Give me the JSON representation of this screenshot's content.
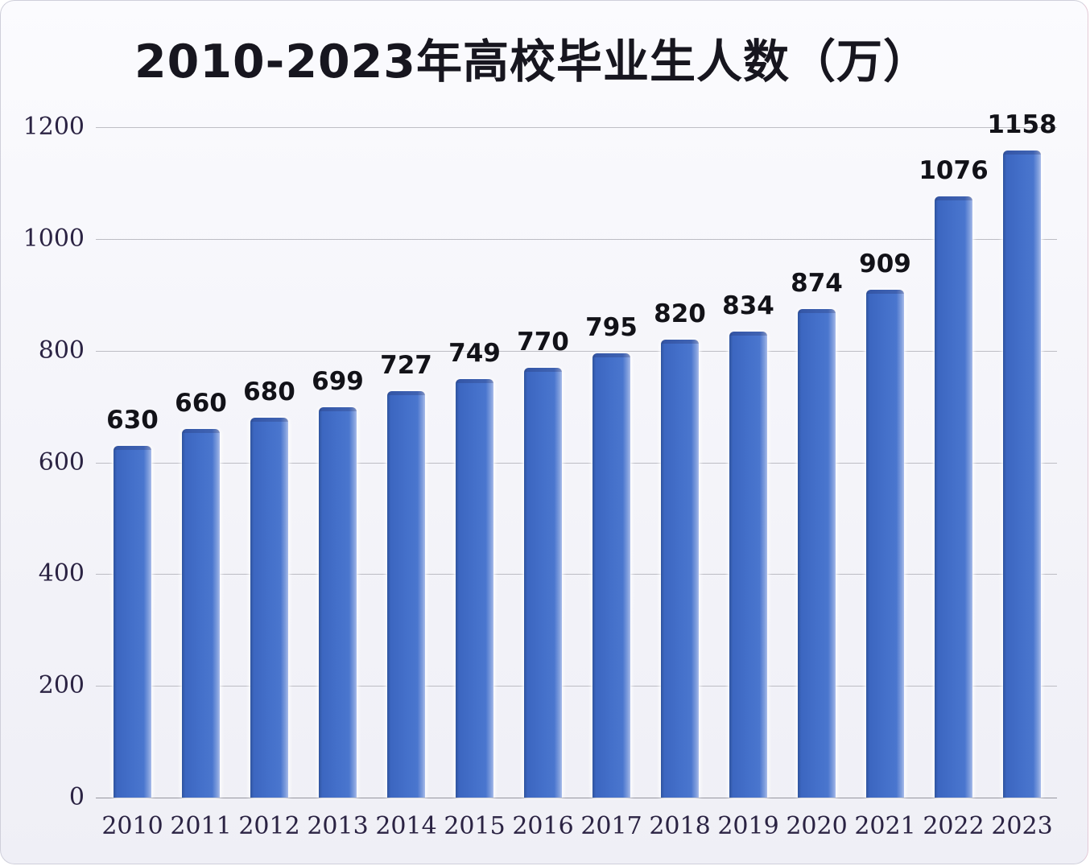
{
  "chart_data": {
    "type": "bar",
    "title": "2010-2023年高校毕业生人数（万）",
    "categories": [
      "2010",
      "2011",
      "2012",
      "2013",
      "2014",
      "2015",
      "2016",
      "2017",
      "2018",
      "2019",
      "2020",
      "2021",
      "2022",
      "2023"
    ],
    "values": [
      630,
      660,
      680,
      699,
      727,
      749,
      770,
      795,
      820,
      834,
      874,
      909,
      1076,
      1158
    ],
    "xlabel": "",
    "ylabel": "",
    "ylim": [
      0,
      1200
    ],
    "yticks": [
      0,
      200,
      400,
      600,
      800,
      1000,
      1200
    ],
    "grid": true,
    "legend_position": "none",
    "data_labels_shown": true,
    "bar_color": "#4470ca",
    "bar_gradient_left": "#2f549e",
    "bar_gradient_right": "#aabdea",
    "gridline_color": "#a9a9b2",
    "tick_label_color": "#2b2343",
    "title_color": "#17161f",
    "value_label_color": "#121218",
    "background_color": "#f3f3f9"
  }
}
